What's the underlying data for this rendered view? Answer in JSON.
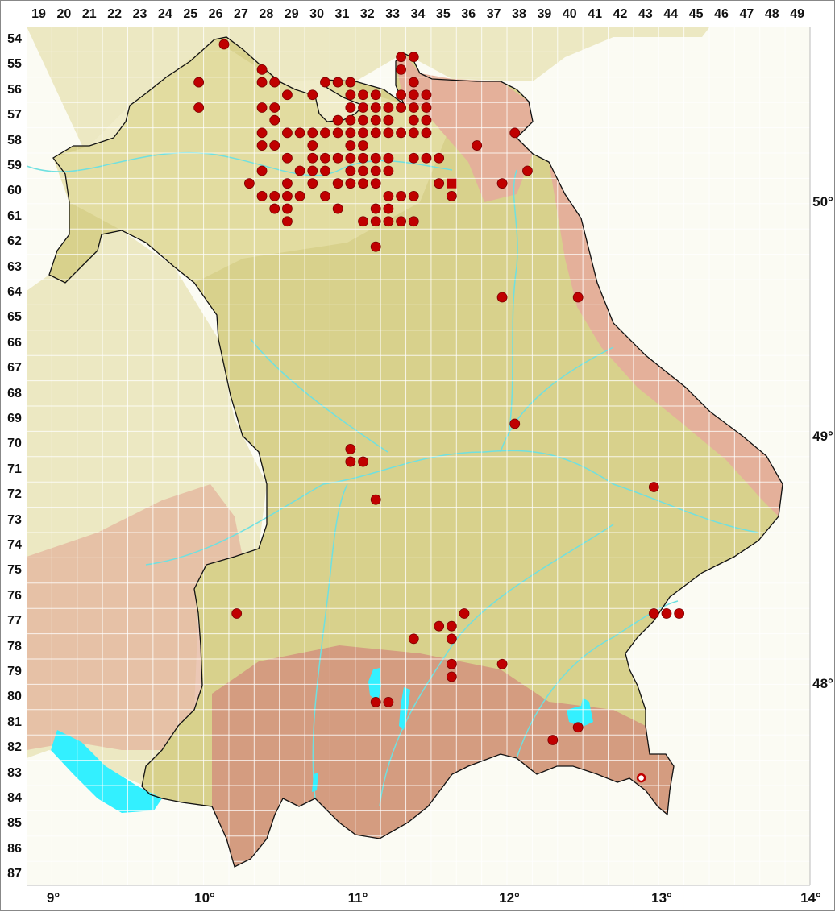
{
  "grid": {
    "columns": [
      "19",
      "20",
      "21",
      "22",
      "23",
      "24",
      "25",
      "26",
      "27",
      "28",
      "29",
      "30",
      "31",
      "32",
      "33",
      "34",
      "35",
      "36",
      "37",
      "38",
      "39",
      "40",
      "41",
      "42",
      "43",
      "44",
      "45",
      "46",
      "47",
      "48",
      "49"
    ],
    "rows": [
      "54",
      "55",
      "56",
      "57",
      "58",
      "59",
      "60",
      "61",
      "62",
      "63",
      "64",
      "65",
      "66",
      "67",
      "68",
      "69",
      "70",
      "71",
      "72",
      "73",
      "74",
      "75",
      "76",
      "77",
      "78",
      "79",
      "80",
      "81",
      "82",
      "83",
      "84",
      "85",
      "86",
      "87"
    ]
  },
  "latitude_labels": [
    "50°",
    "49°",
    "48°"
  ],
  "longitude_labels": [
    "9°",
    "10°",
    "11°",
    "12°",
    "13°",
    "14°"
  ],
  "colors": {
    "dot": "#c00000",
    "dot_outline": "#7a0000",
    "bavaria_lowland": "#d8d18c",
    "neighbor_terrain": "#ece8c2",
    "alps": "#d49c80",
    "upland": "#e4b09a",
    "water": "#33f0ff",
    "river": "#6fe0e0",
    "border": "#111111",
    "gridline": "#ffffff"
  },
  "records": {
    "filled": [
      [
        26,
        54
      ],
      [
        33,
        54.5
      ],
      [
        33.5,
        54.5
      ],
      [
        27.5,
        55
      ],
      [
        33,
        55
      ],
      [
        25,
        55.5
      ],
      [
        27.5,
        55.5
      ],
      [
        28,
        55.5
      ],
      [
        30,
        55.5
      ],
      [
        30.5,
        55.5
      ],
      [
        31,
        55.5
      ],
      [
        33.5,
        55.5
      ],
      [
        28.5,
        56
      ],
      [
        29.5,
        56
      ],
      [
        31,
        56
      ],
      [
        31.5,
        56
      ],
      [
        32,
        56
      ],
      [
        33,
        56
      ],
      [
        33.5,
        56
      ],
      [
        34,
        56
      ],
      [
        25,
        56.5
      ],
      [
        27.5,
        56.5
      ],
      [
        28,
        56.5
      ],
      [
        31,
        56.5
      ],
      [
        31.5,
        56.5
      ],
      [
        32,
        56.5
      ],
      [
        32.5,
        56.5
      ],
      [
        33,
        56.5
      ],
      [
        33.5,
        56.5
      ],
      [
        34,
        56.5
      ],
      [
        28,
        57
      ],
      [
        30.5,
        57
      ],
      [
        31,
        57
      ],
      [
        31.5,
        57
      ],
      [
        32,
        57
      ],
      [
        32.5,
        57
      ],
      [
        33.5,
        57
      ],
      [
        34,
        57
      ],
      [
        27.5,
        57.5
      ],
      [
        28.5,
        57.5
      ],
      [
        29,
        57.5
      ],
      [
        29.5,
        57.5
      ],
      [
        30,
        57.5
      ],
      [
        30.5,
        57.5
      ],
      [
        31,
        57.5
      ],
      [
        31.5,
        57.5
      ],
      [
        32,
        57.5
      ],
      [
        32.5,
        57.5
      ],
      [
        33,
        57.5
      ],
      [
        33.5,
        57.5
      ],
      [
        34,
        57.5
      ],
      [
        37.5,
        57.5
      ],
      [
        27.5,
        58
      ],
      [
        28,
        58
      ],
      [
        29.5,
        58
      ],
      [
        31,
        58
      ],
      [
        31.5,
        58
      ],
      [
        36,
        58
      ],
      [
        28.5,
        58.5
      ],
      [
        29.5,
        58.5
      ],
      [
        30,
        58.5
      ],
      [
        30.5,
        58.5
      ],
      [
        31,
        58.5
      ],
      [
        31.5,
        58.5
      ],
      [
        32,
        58.5
      ],
      [
        32.5,
        58.5
      ],
      [
        33.5,
        58.5
      ],
      [
        34,
        58.5
      ],
      [
        34.5,
        58.5
      ],
      [
        27.5,
        59
      ],
      [
        29,
        59
      ],
      [
        29.5,
        59
      ],
      [
        30,
        59
      ],
      [
        31,
        59
      ],
      [
        31.5,
        59
      ],
      [
        32,
        59
      ],
      [
        32.5,
        59
      ],
      [
        38,
        59
      ],
      [
        27,
        59.5
      ],
      [
        28.5,
        59.5
      ],
      [
        29.5,
        59.5
      ],
      [
        30.5,
        59.5
      ],
      [
        31,
        59.5
      ],
      [
        31.5,
        59.5
      ],
      [
        32,
        59.5
      ],
      [
        34.5,
        59.5
      ],
      [
        37,
        59.5
      ],
      [
        27.5,
        60
      ],
      [
        28,
        60
      ],
      [
        28.5,
        60
      ],
      [
        29,
        60
      ],
      [
        30,
        60
      ],
      [
        32.5,
        60
      ],
      [
        33,
        60
      ],
      [
        33.5,
        60
      ],
      [
        35,
        60
      ],
      [
        28,
        60.5
      ],
      [
        28.5,
        60.5
      ],
      [
        30.5,
        60.5
      ],
      [
        32,
        60.5
      ],
      [
        32.5,
        60.5
      ],
      [
        28.5,
        61
      ],
      [
        31.5,
        61
      ],
      [
        32,
        61
      ],
      [
        32.5,
        61
      ],
      [
        33,
        61
      ],
      [
        33.5,
        61
      ],
      [
        32,
        62
      ],
      [
        37,
        64
      ],
      [
        40,
        64
      ],
      [
        37.5,
        69
      ],
      [
        31,
        70
      ],
      [
        31,
        70.5
      ],
      [
        31.5,
        70.5
      ],
      [
        43,
        71.5
      ],
      [
        32,
        72
      ],
      [
        26.5,
        76.5
      ],
      [
        35.5,
        76.5
      ],
      [
        43,
        76.5
      ],
      [
        43.5,
        76.5
      ],
      [
        44,
        76.5
      ],
      [
        34.5,
        77
      ],
      [
        35,
        77
      ],
      [
        33.5,
        77.5
      ],
      [
        35,
        77.5
      ],
      [
        35,
        78.5
      ],
      [
        37,
        78.5
      ],
      [
        35,
        79
      ],
      [
        32,
        80
      ],
      [
        32.5,
        80
      ],
      [
        40,
        81
      ],
      [
        39,
        81.5
      ]
    ],
    "square": [
      [
        35,
        59.5
      ]
    ],
    "open": [
      [
        42.5,
        83
      ]
    ]
  }
}
